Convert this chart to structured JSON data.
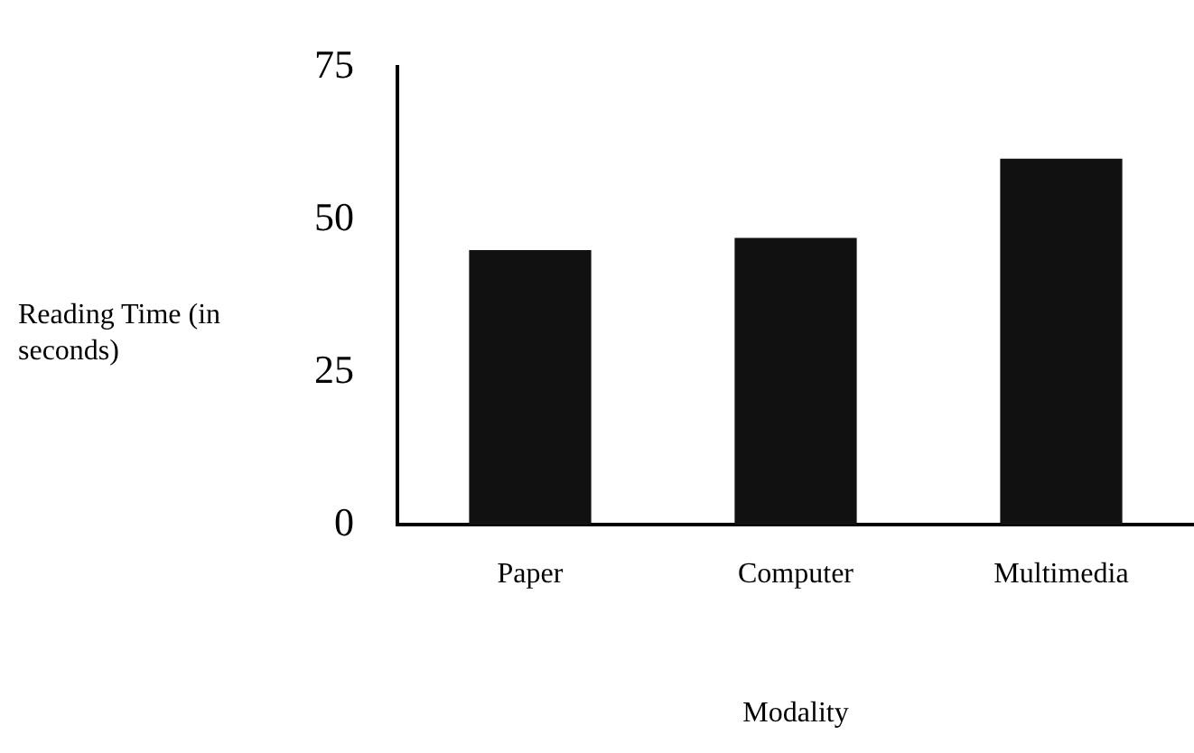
{
  "chart_data": {
    "type": "bar",
    "xlabel": "Modality",
    "ylabel": "Reading Time (in seconds)",
    "categories": [
      "Paper",
      "Computer",
      "Multimedia"
    ],
    "values": [
      45,
      47,
      60
    ],
    "color": "#111111",
    "ylim": [
      0,
      75
    ],
    "yticks": [
      0,
      25,
      50,
      75
    ],
    "grid": false,
    "legend": false
  }
}
